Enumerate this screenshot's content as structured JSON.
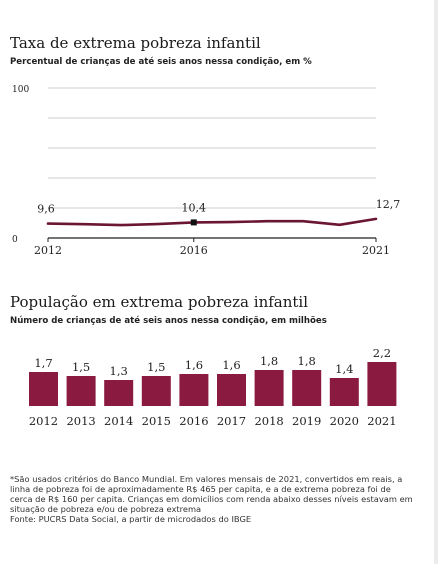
{
  "chart_data": [
    {
      "type": "line",
      "title": "Taxa de extrema pobreza infantil",
      "subtitle": "Percentual de crianças de até seis anos nessa condição, em %",
      "x": [
        2012,
        2013,
        2014,
        2015,
        2016,
        2017,
        2018,
        2019,
        2020,
        2021
      ],
      "values": [
        9.6,
        9.2,
        8.6,
        9.3,
        10.4,
        10.6,
        11.2,
        11.2,
        8.8,
        12.7
      ],
      "xticks": [
        "2012",
        "2016",
        "2021"
      ],
      "yticks": [
        "100",
        "0"
      ],
      "ylim": [
        0,
        100
      ],
      "data_labels": [
        {
          "x": 2012,
          "text": "9,6"
        },
        {
          "x": 2016,
          "text": "10,4"
        },
        {
          "x": 2021,
          "text": "12,7"
        }
      ],
      "marker_at": 2016,
      "line_color": "#6b1535",
      "grid": true,
      "xlabel": "",
      "ylabel": ""
    },
    {
      "type": "bar",
      "title": "População em extrema pobreza infantil",
      "subtitle": "Número de crianças de até seis anos nessa condição, em milhões",
      "categories": [
        "2012",
        "2013",
        "2014",
        "2015",
        "2016",
        "2017",
        "2018",
        "2019",
        "2020",
        "2021"
      ],
      "values": [
        1.7,
        1.5,
        1.3,
        1.5,
        1.6,
        1.6,
        1.8,
        1.8,
        1.4,
        2.2
      ],
      "labels": [
        "1,7",
        "1,5",
        "1,3",
        "1,5",
        "1,6",
        "1,6",
        "1,8",
        "1,8",
        "1,4",
        "2,2"
      ],
      "bar_color": "#8a1a3f",
      "xlabel": "",
      "ylabel": ""
    }
  ],
  "footnote": [
    "*São usados critérios do Banco Mundial. Em valores mensais de 2021, convertidos em reais, a linha de pobreza foi de aproximadamente R$ 465 per capita, e a de extrema pobreza foi de cerca de R$ 160 per capita. Crianças em domicílios com renda abaixo desses níveis estavam em situação de pobreza e/ou de pobreza extrema",
    "Fonte: PUCRS Data Social, a partir de microdados do IBGE"
  ]
}
